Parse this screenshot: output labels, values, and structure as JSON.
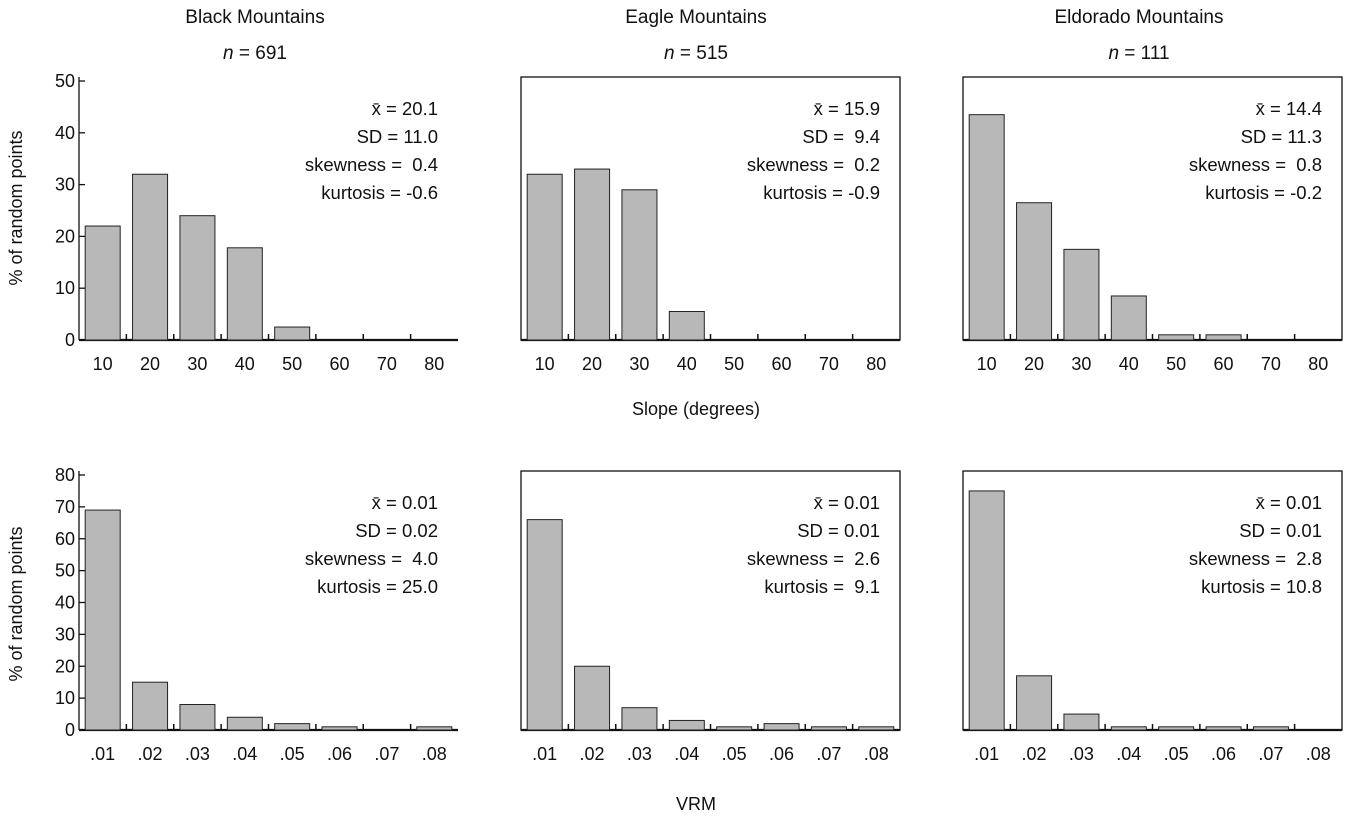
{
  "columns": [
    {
      "title": "Black Mountains",
      "n_prefix": "n",
      "n_value": "= 691"
    },
    {
      "title": "Eagle Mountains",
      "n_prefix": "n",
      "n_value": "= 515"
    },
    {
      "title": "Eldorado Mountains",
      "n_prefix": "n",
      "n_value": "= 111"
    }
  ],
  "ylabel": "% of random points",
  "xlabel_top": "Slope (degrees)",
  "xlabel_bottom": "VRM",
  "colors": {
    "bar_fill": "#b8b8b8",
    "bar_stroke": "#222222",
    "axis": "#111111"
  },
  "chart_data": [
    {
      "type": "bar",
      "row": "slope",
      "mountain": "Black Mountains",
      "categories": [
        "10",
        "20",
        "30",
        "40",
        "50",
        "60",
        "70",
        "80"
      ],
      "values": [
        22,
        32,
        24,
        17.8,
        2.5,
        0,
        0,
        0
      ],
      "ylim": [
        0,
        50
      ],
      "yticks": [
        0,
        10,
        20,
        30,
        40,
        50
      ],
      "stats": [
        "x̄ = 20.1",
        "SD = 11.0",
        "skewness =  0.4",
        "kurtosis = -0.6"
      ]
    },
    {
      "type": "bar",
      "row": "slope",
      "mountain": "Eagle Mountains",
      "categories": [
        "10",
        "20",
        "30",
        "40",
        "50",
        "60",
        "70",
        "80"
      ],
      "values": [
        32,
        33,
        29,
        5.5,
        0,
        0,
        0,
        0
      ],
      "ylim": [
        0,
        50
      ],
      "yticks": [],
      "stats": [
        "x̄ = 15.9",
        "SD =  9.4",
        "skewness =  0.2",
        "kurtosis = -0.9"
      ]
    },
    {
      "type": "bar",
      "row": "slope",
      "mountain": "Eldorado Mountains",
      "categories": [
        "10",
        "20",
        "30",
        "40",
        "50",
        "60",
        "70",
        "80"
      ],
      "values": [
        43.5,
        26.5,
        17.5,
        8.5,
        1,
        1,
        0,
        0
      ],
      "ylim": [
        0,
        50
      ],
      "yticks": [],
      "stats": [
        "x̄ = 14.4",
        "SD = 11.3",
        "skewness =  0.8",
        "kurtosis = -0.2"
      ]
    },
    {
      "type": "bar",
      "row": "vrm",
      "mountain": "Black Mountains",
      "categories": [
        ".01",
        ".02",
        ".03",
        ".04",
        ".05",
        ".06",
        ".07",
        ".08"
      ],
      "values": [
        69,
        15,
        8,
        4,
        2,
        1,
        0,
        1
      ],
      "ylim": [
        0,
        80
      ],
      "yticks": [
        0,
        10,
        20,
        30,
        40,
        50,
        60,
        70,
        80
      ],
      "stats": [
        "x̄ = 0.01",
        "SD = 0.02",
        "skewness =  4.0",
        "kurtosis = 25.0"
      ]
    },
    {
      "type": "bar",
      "row": "vrm",
      "mountain": "Eagle Mountains",
      "categories": [
        ".01",
        ".02",
        ".03",
        ".04",
        ".05",
        ".06",
        ".07",
        ".08"
      ],
      "values": [
        66,
        20,
        7,
        3,
        1,
        2,
        1,
        1
      ],
      "ylim": [
        0,
        80
      ],
      "yticks": [],
      "stats": [
        "x̄ = 0.01",
        "SD = 0.01",
        "skewness =  2.6",
        "kurtosis =  9.1"
      ]
    },
    {
      "type": "bar",
      "row": "vrm",
      "mountain": "Eldorado Mountains",
      "categories": [
        ".01",
        ".02",
        ".03",
        ".04",
        ".05",
        ".06",
        ".07",
        ".08"
      ],
      "values": [
        75,
        17,
        5,
        1,
        1,
        1,
        1,
        0
      ],
      "ylim": [
        0,
        80
      ],
      "yticks": [],
      "stats": [
        "x̄ = 0.01",
        "SD = 0.01",
        "skewness =  2.8",
        "kurtosis = 10.8"
      ]
    }
  ]
}
